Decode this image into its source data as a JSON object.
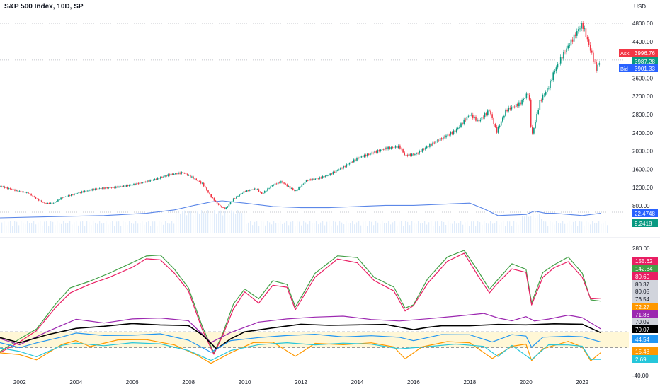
{
  "header": {
    "title": "S&P 500 Index, 10D, SP",
    "currency": "USD"
  },
  "chart_data": [
    {
      "type": "line",
      "pane": "price",
      "ylim": [
        600,
        5000
      ],
      "y_ticks": [
        "4800.00",
        "4400.00",
        "4000.00",
        "3600.00",
        "3200.00",
        "2800.00",
        "2400.00",
        "2000.00",
        "1600.00",
        "1200.00",
        "800.00"
      ],
      "y_tick_values": [
        4800,
        4400,
        4000,
        3600,
        3200,
        2800,
        2400,
        2000,
        1600,
        1200,
        800
      ],
      "x_ticks": [
        "2002",
        "2004",
        "2006",
        "2008",
        "2010",
        "2012",
        "2014",
        "2016",
        "2018",
        "2020",
        "2022"
      ],
      "x_tick_years": [
        2002,
        2004,
        2006,
        2008,
        2010,
        2012,
        2014,
        2016,
        2018,
        2020,
        2022
      ],
      "x_range": [
        2001.3,
        2022.9
      ],
      "price_series": {
        "x": [
          2001.3,
          2001.6,
          2001.9,
          2002.3,
          2002.6,
          2002.9,
          2003.2,
          2003.5,
          2003.9,
          2004.3,
          2004.8,
          2005.3,
          2005.8,
          2006.3,
          2006.8,
          2007.3,
          2007.8,
          2008.2,
          2008.5,
          2008.8,
          2009.1,
          2009.3,
          2009.6,
          2010.0,
          2010.4,
          2010.6,
          2011.0,
          2011.3,
          2011.6,
          2011.8,
          2012.2,
          2012.6,
          2013.0,
          2013.5,
          2014.0,
          2014.5,
          2015.0,
          2015.5,
          2015.7,
          2016.1,
          2016.5,
          2017.0,
          2017.5,
          2018.0,
          2018.3,
          2018.7,
          2018.95,
          2019.3,
          2019.8,
          2020.1,
          2020.2,
          2020.5,
          2020.8,
          2021.0,
          2021.3,
          2021.6,
          2021.9,
          2022.0,
          2022.2,
          2022.35,
          2022.5,
          2022.65
        ],
        "y": [
          1230,
          1180,
          1130,
          1080,
          950,
          850,
          860,
          980,
          1050,
          1120,
          1180,
          1200,
          1240,
          1300,
          1380,
          1480,
          1530,
          1400,
          1280,
          1000,
          800,
          730,
          950,
          1120,
          1180,
          1060,
          1260,
          1330,
          1200,
          1120,
          1360,
          1400,
          1480,
          1650,
          1840,
          1950,
          2060,
          2100,
          1900,
          1940,
          2100,
          2280,
          2450,
          2810,
          2650,
          2900,
          2420,
          2900,
          3050,
          3300,
          2300,
          3100,
          3400,
          3750,
          4100,
          4400,
          4700,
          4780,
          4400,
          4100,
          3800,
          3990
        ]
      },
      "volume_line": {
        "x": [
          2001.3,
          2003.0,
          2005.0,
          2006.5,
          2007.5,
          2008.2,
          2008.8,
          2009.2,
          2010.0,
          2011.0,
          2012.0,
          2013.0,
          2014.0,
          2015.0,
          2016.0,
          2017.0,
          2018.0,
          2018.5,
          2019.0,
          2020.0,
          2020.3,
          2020.7,
          2021.0,
          2021.5,
          2022.0,
          2022.65
        ],
        "y": [
          5,
          6,
          7,
          9,
          12,
          16,
          19,
          20,
          18,
          15,
          14,
          14,
          15,
          16,
          16,
          17,
          18,
          13,
          7,
          8,
          11,
          9,
          9,
          8,
          7,
          9
        ]
      },
      "markers": [
        {
          "label": "Ask",
          "value": "3996.76",
          "color": "#f23645"
        },
        {
          "label": "",
          "value": "3987.28",
          "color": "#089981"
        },
        {
          "label": "Bid",
          "value": "3901.33",
          "color": "#2962ff"
        },
        {
          "label": "",
          "value": "22.4748",
          "color": "#2962ff"
        },
        {
          "label": "",
          "value": "9.2418",
          "color": "#089981"
        }
      ]
    },
    {
      "type": "line",
      "pane": "oscillator",
      "ylim": [
        -40,
        300
      ],
      "y_ticks": [
        "280.00",
        "-40.00"
      ],
      "y_tick_values": [
        280,
        -40
      ],
      "band": [
        30,
        70
      ],
      "series": [
        {
          "color": "#43a047",
          "x": [
            2001.3,
            2002.0,
            2002.6,
            2003.3,
            2003.8,
            2004.5,
            2005.2,
            2006.0,
            2006.5,
            2007.0,
            2007.5,
            2008.0,
            2008.5,
            2008.9,
            2009.2,
            2009.6,
            2010.0,
            2010.5,
            2011.0,
            2011.5,
            2011.8,
            2012.5,
            2013.3,
            2014.0,
            2014.6,
            2015.3,
            2015.7,
            2016.0,
            2016.5,
            2017.2,
            2017.8,
            2018.3,
            2018.7,
            2019.0,
            2019.5,
            2020.0,
            2020.2,
            2020.6,
            2021.0,
            2021.5,
            2022.0,
            2022.3,
            2022.65
          ],
          "y": [
            20,
            50,
            80,
            140,
            180,
            200,
            215,
            245,
            262,
            260,
            230,
            180,
            80,
            20,
            60,
            140,
            180,
            150,
            200,
            190,
            130,
            220,
            260,
            255,
            210,
            180,
            130,
            140,
            200,
            260,
            275,
            220,
            180,
            200,
            240,
            230,
            140,
            220,
            240,
            255,
            220,
            150,
            145
          ]
        },
        {
          "color": "#e91e63",
          "x": [
            2001.3,
            2002.0,
            2002.6,
            2003.3,
            2003.8,
            2004.5,
            2005.2,
            2006.0,
            2006.5,
            2007.0,
            2007.5,
            2008.0,
            2008.5,
            2008.9,
            2009.2,
            2009.6,
            2010.0,
            2010.5,
            2011.0,
            2011.5,
            2011.8,
            2012.5,
            2013.3,
            2014.0,
            2014.6,
            2015.3,
            2015.7,
            2016.0,
            2016.5,
            2017.2,
            2017.8,
            2018.3,
            2018.7,
            2019.0,
            2019.5,
            2020.0,
            2020.2,
            2020.6,
            2021.0,
            2021.5,
            2022.0,
            2022.3,
            2022.65
          ],
          "y": [
            15,
            45,
            75,
            130,
            170,
            190,
            205,
            235,
            252,
            250,
            220,
            170,
            75,
            15,
            55,
            130,
            170,
            140,
            190,
            180,
            125,
            210,
            250,
            245,
            200,
            170,
            125,
            135,
            190,
            250,
            265,
            210,
            170,
            190,
            230,
            220,
            135,
            210,
            230,
            245,
            210,
            150,
            155
          ]
        },
        {
          "color": "#9c27b0",
          "x": [
            2001.3,
            2002.0,
            2003.0,
            2004.0,
            2005.0,
            2006.0,
            2007.0,
            2008.0,
            2008.8,
            2009.5,
            2010.5,
            2011.5,
            2012.5,
            2013.5,
            2014.5,
            2015.5,
            2016.5,
            2017.5,
            2018.5,
            2019.0,
            2019.5,
            2020.0,
            2020.3,
            2020.8,
            2021.5,
            2022.0,
            2022.65
          ],
          "y": [
            50,
            40,
            70,
            100,
            95,
            100,
            105,
            100,
            40,
            70,
            95,
            100,
            110,
            108,
            100,
            100,
            100,
            110,
            118,
            102,
            100,
            108,
            95,
            105,
            110,
            105,
            80
          ]
        },
        {
          "color": "#000000",
          "x": [
            2001.3,
            2002.0,
            2003.0,
            2004.0,
            2005.0,
            2006.0,
            2007.0,
            2008.0,
            2008.5,
            2009.0,
            2009.5,
            2010.0,
            2011.0,
            2012.0,
            2013.0,
            2014.0,
            2015.0,
            2016.0,
            2016.5,
            2017.0,
            2018.0,
            2019.0,
            2020.0,
            2021.0,
            2022.0,
            2022.65
          ],
          "y": [
            55,
            45,
            60,
            80,
            85,
            88,
            90,
            85,
            60,
            30,
            50,
            70,
            82,
            86,
            88,
            88,
            86,
            78,
            80,
            84,
            88,
            86,
            88,
            92,
            86,
            70
          ]
        },
        {
          "color": "#2196f3",
          "x": [
            2001.3,
            2002.0,
            2002.6,
            2003.5,
            2004.0,
            2005.0,
            2006.0,
            2007.0,
            2008.0,
            2008.8,
            2009.5,
            2010.5,
            2011.5,
            2012.5,
            2013.5,
            2014.5,
            2015.5,
            2016.0,
            2017.0,
            2018.0,
            2018.8,
            2019.5,
            2020.0,
            2020.2,
            2020.6,
            2021.5,
            2022.0,
            2022.65
          ],
          "y": [
            45,
            30,
            40,
            60,
            65,
            60,
            64,
            62,
            50,
            20,
            45,
            58,
            60,
            62,
            60,
            58,
            56,
            50,
            60,
            64,
            45,
            60,
            62,
            30,
            55,
            62,
            55,
            45
          ]
        },
        {
          "color": "#ff9800",
          "x": [
            2001.3,
            2002.0,
            2002.6,
            2003.5,
            2004.0,
            2004.5,
            2005.5,
            2006.5,
            2007.5,
            2008.3,
            2008.8,
            2009.5,
            2010.3,
            2011.0,
            2011.8,
            2012.5,
            2013.5,
            2014.5,
            2015.3,
            2015.7,
            2016.3,
            2017.2,
            2018.0,
            2018.8,
            2019.5,
            2020.0,
            2020.2,
            2020.6,
            2021.5,
            2022.0,
            2022.3,
            2022.65
          ],
          "y": [
            20,
            10,
            0,
            40,
            45,
            35,
            50,
            48,
            40,
            10,
            -10,
            20,
            40,
            45,
            10,
            38,
            40,
            42,
            30,
            5,
            30,
            45,
            45,
            0,
            35,
            40,
            -5,
            30,
            45,
            30,
            0,
            15
          ]
        },
        {
          "color": "#26c6da",
          "x": [
            2001.3,
            2002.0,
            2002.6,
            2003.5,
            2004.0,
            2005.0,
            2006.0,
            2007.0,
            2008.0,
            2008.8,
            2009.5,
            2010.5,
            2011.5,
            2012.5,
            2013.5,
            2014.5,
            2015.5,
            2016.5,
            2017.5,
            2018.5,
            2019.0,
            2019.5,
            2020.2,
            2020.8,
            2021.5,
            2022.0,
            2022.3,
            2022.65
          ],
          "y": [
            30,
            18,
            10,
            35,
            40,
            38,
            40,
            40,
            25,
            -5,
            25,
            38,
            40,
            40,
            40,
            38,
            30,
            30,
            40,
            35,
            5,
            38,
            0,
            35,
            40,
            32,
            0,
            3
          ]
        }
      ],
      "markers": [
        {
          "value": "155.62",
          "color": "#e91e63"
        },
        {
          "value": "142.84",
          "color": "#43a047"
        },
        {
          "value": "80.60",
          "color": "#e91e63"
        },
        {
          "value": "80.37",
          "color": "#d1d4dc"
        },
        {
          "value": "80.05",
          "color": "#d1d4dc"
        },
        {
          "value": "76.54",
          "color": "#d1d4dc"
        },
        {
          "value": "72.27",
          "color": "#ff9800"
        },
        {
          "value": "71.88",
          "color": "#9c27b0"
        },
        {
          "value": "70.09",
          "color": "#d1d4dc"
        },
        {
          "value": "70.07",
          "color": "#000000"
        },
        {
          "value": "44.54",
          "color": "#2196f3"
        },
        {
          "value": "15.48",
          "color": "#ff9800"
        },
        {
          "value": "2.69",
          "color": "#26c6da"
        }
      ]
    }
  ]
}
